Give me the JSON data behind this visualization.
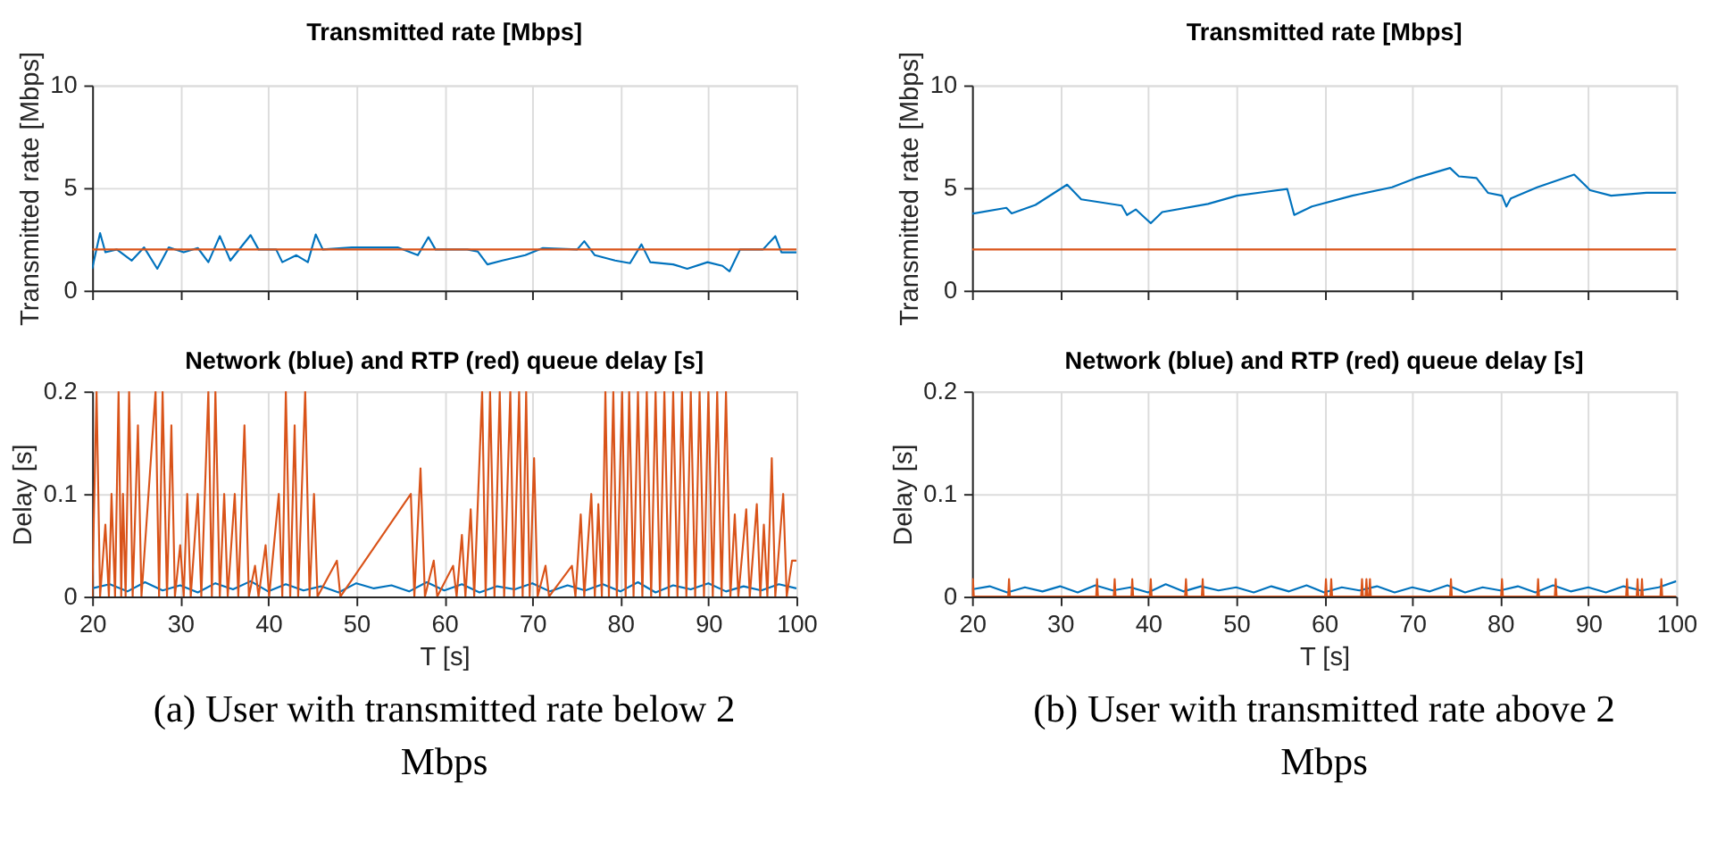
{
  "chart_data": [
    {
      "type": "line",
      "title": "Transmitted rate [Mbps]",
      "ylabel": "Transmitted rate [Mbps]",
      "xlim": [
        20,
        100
      ],
      "xticks": [
        20,
        30,
        40,
        50,
        60,
        70,
        80,
        90,
        100
      ],
      "ylim": [
        0,
        10
      ],
      "yticks": [
        0,
        5,
        10
      ],
      "tick_labels": "y",
      "grid": true,
      "marker": "none",
      "line_style": "solid",
      "series": [
        {
          "color": "#0072bd",
          "x": [
            20,
            20.9,
            21.5,
            22.8,
            24.5,
            25.9,
            27.4,
            28.7,
            30.4,
            32,
            33.2,
            34.5,
            35.7,
            38,
            38.9,
            40.9,
            41.6,
            43.2,
            44.5,
            45.4,
            46.2,
            49.5,
            54.7,
            57,
            58.2,
            59,
            62.6,
            63.8,
            64.9,
            66.6,
            69.2,
            71.2,
            75.1,
            75.9,
            77.1,
            79.4,
            81.1,
            82.4,
            83.4,
            86,
            87.6,
            89.9,
            91.6,
            92.4,
            93.6,
            96.2,
            97.6,
            98.3,
            100
          ],
          "values": [
            1.06,
            2.8,
            1.86,
            2.0,
            1.46,
            2.1,
            1.06,
            2.1,
            1.86,
            2.07,
            1.38,
            2.65,
            1.46,
            2.7,
            2.0,
            2.0,
            1.38,
            1.72,
            1.38,
            2.73,
            2.0,
            2.1,
            2.1,
            1.72,
            2.6,
            2.0,
            2.0,
            1.9,
            1.27,
            1.46,
            1.72,
            2.07,
            2.0,
            2.4,
            1.72,
            1.46,
            1.33,
            2.25,
            1.38,
            1.27,
            1.06,
            1.38,
            1.2,
            0.93,
            2.0,
            2.0,
            2.65,
            1.86,
            1.86
          ]
        },
        {
          "color": "#d95319",
          "x": [
            20,
            100
          ],
          "values": [
            2,
            2
          ]
        }
      ]
    },
    {
      "type": "line",
      "title": "Transmitted rate [Mbps]",
      "ylabel": "Transmitted rate [Mbps]",
      "xlim": [
        20,
        100
      ],
      "xticks": [
        20,
        30,
        40,
        50,
        60,
        70,
        80,
        90,
        100
      ],
      "ylim": [
        0,
        10
      ],
      "yticks": [
        0,
        5,
        10
      ],
      "tick_labels": "y",
      "grid": true,
      "marker": "none",
      "line_style": "solid",
      "series": [
        {
          "color": "#0072bd",
          "x": [
            20,
            23.9,
            24.5,
            27.2,
            30.8,
            32.4,
            37,
            37.6,
            38.6,
            40.3,
            41.6,
            46.8,
            50.1,
            53.4,
            55.8,
            56.6,
            58.6,
            63.2,
            67.7,
            70.4,
            74.3,
            75.3,
            77.3,
            78.6,
            80.2,
            80.7,
            81.2,
            84.2,
            88.4,
            90.2,
            92.6,
            96.6,
            100
          ],
          "values": [
            3.74,
            4.03,
            3.76,
            4.17,
            5.16,
            4.44,
            4.14,
            3.68,
            3.95,
            3.28,
            3.82,
            4.22,
            4.62,
            4.81,
            4.95,
            3.68,
            4.09,
            4.62,
            5.03,
            5.48,
            5.97,
            5.56,
            5.48,
            4.76,
            4.62,
            4.09,
            4.49,
            5.03,
            5.65,
            4.89,
            4.62,
            4.76,
            4.76
          ]
        },
        {
          "color": "#d95319",
          "x": [
            20,
            100
          ],
          "values": [
            2,
            2
          ]
        }
      ]
    },
    {
      "type": "line",
      "title": "Network (blue) and RTP (red) queue delay [s]",
      "xlabel": "T [s]",
      "ylabel": "Delay [s]",
      "xlim": [
        20,
        100
      ],
      "xticks": [
        20,
        30,
        40,
        50,
        60,
        70,
        80,
        90,
        100
      ],
      "ylim": [
        0,
        0.2
      ],
      "yticks": [
        0,
        0.1,
        0.2
      ],
      "grid": true,
      "marker": "none",
      "line_style": "solid",
      "annotations": [
        "(a) User with transmitted rate below 2 Mbps"
      ],
      "series": [
        {
          "color": "#0072bd",
          "x": [
            20,
            22,
            24,
            26,
            28,
            30,
            32,
            34,
            36,
            38,
            40,
            42,
            44,
            46,
            48,
            50,
            52,
            54,
            56,
            58,
            60,
            62,
            64,
            66,
            68,
            70,
            72,
            74,
            76,
            78,
            80,
            82,
            84,
            86,
            88,
            90,
            92,
            94,
            96,
            98,
            100
          ],
          "values": [
            0.008,
            0.012,
            0.005,
            0.014,
            0.006,
            0.011,
            0.004,
            0.013,
            0.007,
            0.015,
            0.005,
            0.012,
            0.006,
            0.01,
            0.004,
            0.013,
            0.008,
            0.011,
            0.005,
            0.014,
            0.006,
            0.012,
            0.004,
            0.01,
            0.007,
            0.013,
            0.005,
            0.011,
            0.006,
            0.012,
            0.005,
            0.014,
            0.004,
            0.011,
            0.007,
            0.013,
            0.005,
            0.01,
            0.006,
            0.012,
            0.008
          ]
        },
        {
          "color": "#d95319",
          "x": [
            20,
            20.5,
            20.9,
            21.5,
            21.9,
            22.2,
            22.6,
            23.0,
            23.3,
            23.5,
            23.8,
            24.2,
            24.6,
            25.2,
            25.6,
            27.2,
            27.6,
            28.0,
            28.5,
            29.0,
            29.4,
            30.0,
            30.4,
            30.8,
            31.2,
            32.0,
            32.4,
            33.2,
            33.6,
            34.0,
            34.5,
            35.0,
            35.4,
            36.2,
            36.6,
            37.3,
            37.8,
            38.5,
            38.9,
            39.7,
            40.1,
            41.2,
            41.6,
            42.0,
            42.5,
            43.0,
            43.4,
            44.2,
            44.7,
            45.2,
            45.6,
            47.8,
            48.2,
            56.2,
            56.6,
            57.3,
            57.8,
            58.8,
            59.2,
            61.0,
            61.4,
            62.0,
            62.4,
            63.0,
            63.4,
            64.3,
            64.7,
            65.2,
            65.7,
            66.3,
            66.8,
            67.5,
            67.9,
            68.5,
            68.9,
            69.3,
            69.7,
            70.2,
            70.6,
            71.5,
            71.9,
            74.5,
            74.9,
            75.5,
            75.9,
            76.7,
            77.1,
            77.5,
            77.9,
            78.3,
            78.7,
            79.2,
            79.6,
            80.2,
            80.6,
            81.0,
            81.5,
            82.0,
            82.5,
            83.0,
            83.5,
            84.0,
            84.5,
            85.0,
            85.5,
            86.0,
            86.5,
            87.0,
            87.5,
            88.0,
            88.5,
            89.0,
            89.5,
            90.0,
            90.5,
            91.0,
            91.5,
            92.0,
            92.5,
            93.0,
            93.4,
            94.3,
            94.7,
            95.5,
            95.9,
            96.3,
            96.7,
            97.2,
            97.6,
            98.5,
            98.9,
            99.5,
            100
          ],
          "values": [
            0,
            0.2,
            0,
            0.07,
            0,
            0.1,
            0,
            0.2,
            0,
            0.1,
            0,
            0.2,
            0,
            0.167,
            0,
            0.2,
            0,
            0.2,
            0,
            0.167,
            0,
            0.05,
            0,
            0.1,
            0,
            0.1,
            0,
            0.2,
            0,
            0.2,
            0,
            0.1,
            0,
            0.1,
            0,
            0.167,
            0,
            0.03,
            0,
            0.05,
            0,
            0.1,
            0,
            0.2,
            0,
            0.167,
            0,
            0.2,
            0,
            0.1,
            0,
            0.035,
            0,
            0.1,
            0,
            0.125,
            0,
            0.035,
            0,
            0.03,
            0,
            0.06,
            0,
            0.085,
            0,
            0.2,
            0,
            0.2,
            0,
            0.2,
            0,
            0.2,
            0,
            0.2,
            0,
            0.2,
            0,
            0.135,
            0,
            0.03,
            0,
            0.03,
            0,
            0.08,
            0,
            0.1,
            0,
            0.09,
            0,
            0.2,
            0,
            0.2,
            0,
            0.2,
            0,
            0.2,
            0,
            0.2,
            0,
            0.2,
            0,
            0.2,
            0,
            0.2,
            0,
            0.2,
            0,
            0.2,
            0,
            0.2,
            0,
            0.2,
            0,
            0.2,
            0,
            0.2,
            0,
            0.2,
            0,
            0.08,
            0,
            0.085,
            0,
            0.09,
            0,
            0.07,
            0,
            0.135,
            0,
            0.1,
            0,
            0.035,
            0.035
          ]
        }
      ]
    },
    {
      "type": "line",
      "title": "Network (blue) and RTP (red) queue delay [s]",
      "xlabel": "T [s]",
      "ylabel": "Delay [s]",
      "xlim": [
        20,
        100
      ],
      "xticks": [
        20,
        30,
        40,
        50,
        60,
        70,
        80,
        90,
        100
      ],
      "ylim": [
        0,
        0.2
      ],
      "yticks": [
        0,
        0.1,
        0.2
      ],
      "grid": true,
      "marker": "none",
      "line_style": "solid",
      "annotations": [
        "(b) User with transmitted rate above 2 Mbps"
      ],
      "series": [
        {
          "color": "#0072bd",
          "x": [
            20,
            22,
            24,
            26,
            28,
            30,
            32,
            34,
            36,
            38,
            40,
            42,
            44,
            46,
            48,
            50,
            52,
            54,
            56,
            58,
            60,
            62,
            64,
            66,
            68,
            70,
            72,
            74,
            76,
            78,
            80,
            82,
            84,
            86,
            88,
            90,
            92,
            94,
            96,
            98,
            100
          ],
          "values": [
            0.007,
            0.01,
            0.004,
            0.009,
            0.005,
            0.01,
            0.004,
            0.011,
            0.006,
            0.009,
            0.004,
            0.012,
            0.005,
            0.01,
            0.006,
            0.009,
            0.004,
            0.01,
            0.005,
            0.011,
            0.004,
            0.009,
            0.006,
            0.01,
            0.004,
            0.009,
            0.005,
            0.011,
            0.004,
            0.009,
            0.006,
            0.01,
            0.004,
            0.011,
            0.005,
            0.009,
            0.004,
            0.01,
            0.006,
            0.009,
            0.015
          ]
        },
        {
          "color": "#d95319",
          "x": [
            20,
            20.1,
            20.2,
            24.1,
            24.2,
            24.3,
            34.1,
            34.2,
            34.3,
            36.1,
            36.2,
            36.3,
            38.1,
            38.2,
            38.3,
            40.2,
            40.3,
            40.4,
            44.2,
            44.3,
            44.4,
            46.1,
            46.2,
            46.3,
            60.1,
            60.2,
            60.3,
            60.7,
            60.8,
            60.9,
            64.2,
            64.3,
            64.4,
            64.7,
            64.8,
            64.9,
            65.1,
            65.2,
            65.3,
            74.3,
            74.4,
            74.5,
            80.1,
            80.2,
            80.3,
            84.2,
            84.3,
            84.4,
            86.2,
            86.3,
            86.4,
            94.3,
            94.4,
            94.5,
            95.5,
            95.6,
            95.7,
            96.0,
            96.1,
            96.2,
            98.2,
            98.3,
            98.4,
            100
          ],
          "values": [
            0,
            0.017,
            0,
            0,
            0.017,
            0,
            0,
            0.017,
            0,
            0,
            0.017,
            0,
            0,
            0.017,
            0,
            0,
            0.017,
            0,
            0,
            0.017,
            0,
            0,
            0.017,
            0,
            0,
            0.017,
            0,
            0,
            0.017,
            0,
            0,
            0.017,
            0,
            0,
            0.017,
            0,
            0,
            0.017,
            0,
            0,
            0.017,
            0,
            0,
            0.017,
            0,
            0,
            0.017,
            0,
            0,
            0.017,
            0,
            0,
            0.017,
            0,
            0,
            0.017,
            0,
            0,
            0.017,
            0,
            0,
            0.017,
            0,
            0
          ]
        }
      ]
    }
  ]
}
